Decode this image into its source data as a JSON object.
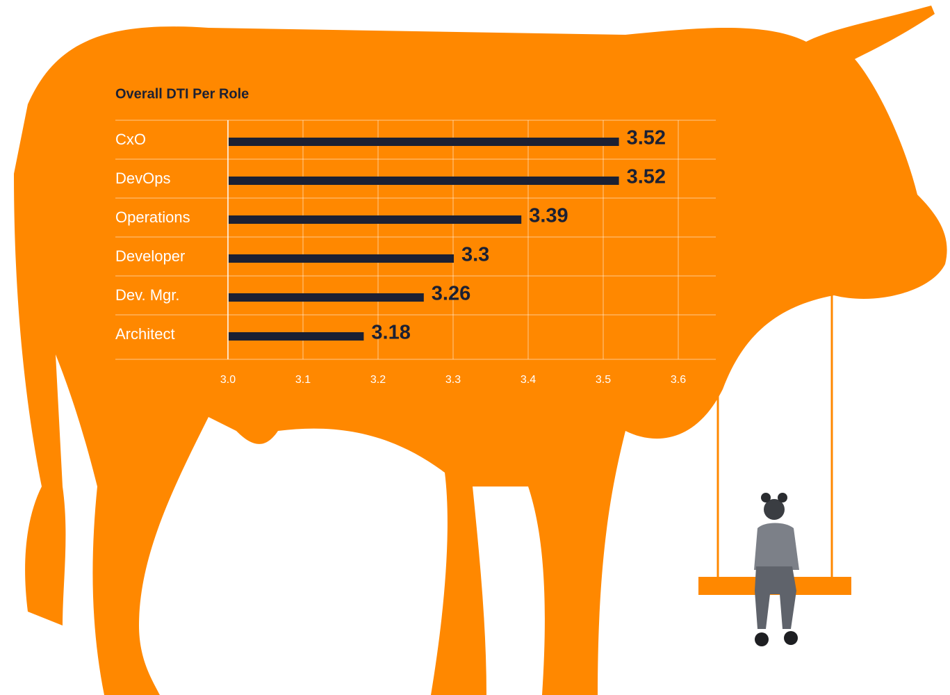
{
  "chart_data": {
    "type": "bar",
    "orientation": "horizontal",
    "title": "Overall DTI Per Role",
    "categories": [
      "CxO",
      "DevOps",
      "Operations",
      "Developer",
      "Dev. Mgr.",
      "Architect"
    ],
    "values": [
      3.52,
      3.52,
      3.39,
      3.3,
      3.26,
      3.18
    ],
    "color": "#1b2033",
    "xlim": [
      3,
      3.65
    ],
    "xticks": [
      {
        "value": 3,
        "label": "3.0"
      },
      3.1,
      3.2,
      3.3,
      3.4,
      3.5,
      3.6
    ],
    "grid": true
  }
}
